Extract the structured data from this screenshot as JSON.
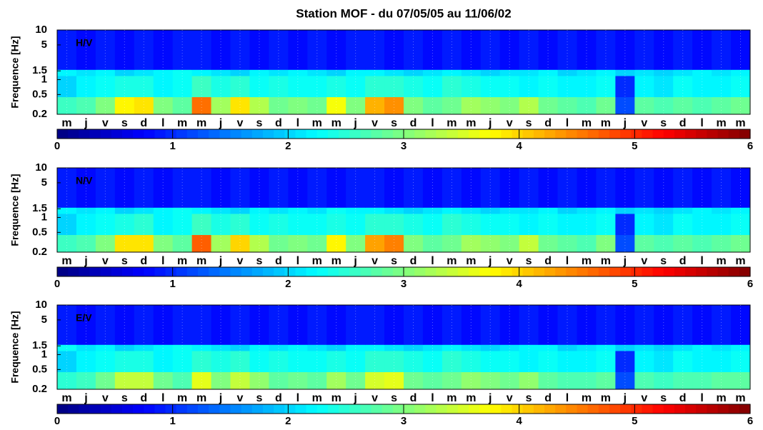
{
  "chart_data": [
    {
      "type": "heatmap",
      "title": "Station MOF - du 07/05/05 au 11/06/02",
      "label": "H/V",
      "ylabel": "Frequence [Hz]",
      "categories": [
        "m",
        "j",
        "v",
        "s",
        "d",
        "l",
        "m",
        "m",
        "j",
        "v",
        "s",
        "d",
        "l",
        "m",
        "m",
        "j",
        "v",
        "s",
        "d",
        "l",
        "m",
        "m",
        "j",
        "v",
        "s",
        "d",
        "l",
        "m",
        "m",
        "j",
        "v",
        "s",
        "d",
        "l",
        "m",
        "m"
      ],
      "ybins": [
        0.2,
        0.45,
        1.2,
        1.6,
        10
      ],
      "values": [
        [
          2.6,
          2.7,
          3.0,
          3.8,
          3.9,
          3.0,
          2.8,
          4.6,
          3.2,
          3.9,
          3.3,
          2.9,
          3.0,
          2.9,
          3.7,
          3.0,
          4.2,
          4.4,
          3.0,
          2.8,
          2.9,
          3.2,
          3.1,
          3.0,
          3.3,
          2.9,
          2.8,
          2.7,
          2.9,
          1.2,
          2.8,
          2.7,
          2.8,
          2.7,
          2.8,
          2.9
        ],
        [
          2.0,
          2.2,
          2.3,
          2.4,
          2.4,
          2.2,
          2.3,
          2.6,
          2.4,
          2.5,
          2.3,
          2.4,
          2.3,
          2.3,
          2.4,
          2.3,
          2.5,
          2.5,
          2.4,
          2.3,
          2.5,
          2.4,
          2.3,
          2.3,
          2.2,
          2.3,
          2.2,
          2.2,
          2.3,
          1.0,
          2.2,
          2.1,
          2.3,
          2.2,
          2.2,
          2.3
        ],
        [
          2.2,
          2.1,
          2.2,
          2.0,
          2.1,
          2.2,
          2.3,
          2.2,
          2.1,
          2.0,
          2.2,
          2.1,
          2.2,
          2.1,
          2.0,
          2.2,
          2.2,
          2.1,
          2.0,
          2.1,
          2.2,
          2.1,
          2.0,
          2.1,
          2.1,
          2.2,
          2.0,
          2.1,
          2.2,
          2.0,
          2.1,
          2.0,
          2.1,
          2.2,
          2.1,
          2.2
        ],
        [
          0.9,
          0.8,
          0.9,
          0.8,
          0.9,
          0.8,
          0.9,
          0.9,
          0.8,
          0.9,
          0.8,
          0.9,
          0.8,
          0.9,
          0.8,
          0.9,
          0.9,
          0.8,
          0.9,
          0.8,
          0.9,
          0.8,
          0.9,
          0.8,
          0.9,
          0.8,
          0.9,
          0.8,
          0.9,
          0.8,
          0.9,
          0.8,
          0.9,
          0.8,
          0.9,
          0.8
        ]
      ],
      "ylim": [
        0.2,
        10
      ],
      "yticks": [
        0.2,
        0.5,
        1,
        1.5,
        5,
        10
      ],
      "log_y": true,
      "clim": [
        0,
        6
      ],
      "cticks": [
        0,
        1,
        2,
        3,
        4,
        5,
        6
      ],
      "colormap": "jet"
    },
    {
      "type": "heatmap",
      "label": "N/V",
      "ylabel": "Frequence [Hz]",
      "categories": [
        "m",
        "j",
        "v",
        "s",
        "d",
        "l",
        "m",
        "m",
        "j",
        "v",
        "s",
        "d",
        "l",
        "m",
        "m",
        "j",
        "v",
        "s",
        "d",
        "l",
        "m",
        "m",
        "j",
        "v",
        "s",
        "d",
        "l",
        "m",
        "m",
        "j",
        "v",
        "s",
        "d",
        "l",
        "m",
        "m"
      ],
      "ybins": [
        0.2,
        0.45,
        1.2,
        1.6,
        10
      ],
      "values": [
        [
          2.6,
          2.7,
          3.0,
          3.9,
          3.9,
          3.0,
          2.8,
          4.7,
          3.2,
          4.0,
          3.3,
          2.9,
          3.0,
          2.9,
          3.8,
          3.0,
          4.3,
          4.5,
          3.0,
          2.8,
          2.9,
          3.2,
          3.1,
          3.0,
          3.4,
          2.9,
          2.8,
          2.7,
          3.0,
          1.2,
          2.8,
          2.7,
          2.8,
          2.7,
          2.8,
          2.9
        ],
        [
          2.0,
          2.2,
          2.3,
          2.4,
          2.5,
          2.2,
          2.3,
          2.6,
          2.4,
          2.5,
          2.3,
          2.4,
          2.3,
          2.3,
          2.4,
          2.3,
          2.5,
          2.5,
          2.4,
          2.3,
          2.5,
          2.4,
          2.3,
          2.3,
          2.2,
          2.3,
          2.2,
          2.2,
          2.3,
          1.0,
          2.2,
          2.1,
          2.3,
          2.2,
          2.2,
          2.3
        ],
        [
          2.2,
          2.1,
          2.2,
          2.0,
          2.1,
          2.2,
          2.3,
          2.2,
          2.1,
          2.0,
          2.2,
          2.1,
          2.2,
          2.1,
          2.3,
          2.2,
          2.2,
          2.1,
          2.0,
          2.1,
          2.2,
          2.1,
          2.0,
          2.1,
          2.1,
          2.2,
          2.0,
          2.1,
          2.2,
          2.0,
          2.1,
          2.0,
          2.1,
          2.2,
          2.1,
          2.2
        ],
        [
          0.9,
          0.8,
          0.9,
          0.8,
          0.9,
          0.8,
          0.9,
          0.9,
          0.8,
          0.9,
          0.8,
          0.9,
          0.8,
          0.9,
          0.8,
          0.9,
          0.9,
          0.8,
          0.9,
          0.8,
          0.9,
          0.8,
          0.9,
          0.8,
          0.9,
          0.8,
          0.9,
          0.8,
          0.9,
          0.8,
          0.9,
          0.8,
          0.9,
          0.8,
          0.9,
          0.8
        ]
      ],
      "ylim": [
        0.2,
        10
      ],
      "yticks": [
        0.2,
        0.5,
        1,
        1.5,
        5,
        10
      ],
      "log_y": true,
      "clim": [
        0,
        6
      ],
      "cticks": [
        0,
        1,
        2,
        3,
        4,
        5,
        6
      ],
      "colormap": "jet"
    },
    {
      "type": "heatmap",
      "label": "E/V",
      "ylabel": "Frequence [Hz]",
      "categories": [
        "m",
        "j",
        "v",
        "s",
        "d",
        "l",
        "m",
        "m",
        "j",
        "v",
        "s",
        "d",
        "l",
        "m",
        "m",
        "j",
        "v",
        "s",
        "d",
        "l",
        "m",
        "m",
        "j",
        "v",
        "s",
        "d",
        "l",
        "m",
        "m",
        "j",
        "v",
        "s",
        "d",
        "l",
        "m",
        "m"
      ],
      "ybins": [
        0.2,
        0.45,
        1.2,
        1.6,
        10
      ],
      "values": [
        [
          2.5,
          2.6,
          2.9,
          3.4,
          3.4,
          2.9,
          2.7,
          3.6,
          3.0,
          3.4,
          3.1,
          2.8,
          2.9,
          2.8,
          3.2,
          2.9,
          3.5,
          3.6,
          2.9,
          2.8,
          2.9,
          3.1,
          3.0,
          2.9,
          3.1,
          2.8,
          2.7,
          2.7,
          2.8,
          1.2,
          2.7,
          2.6,
          2.7,
          2.7,
          2.8,
          2.8
        ],
        [
          2.0,
          2.2,
          2.3,
          2.4,
          2.4,
          2.2,
          2.3,
          2.5,
          2.4,
          2.5,
          2.3,
          2.4,
          2.3,
          2.3,
          2.4,
          2.3,
          2.5,
          2.5,
          2.4,
          2.3,
          2.5,
          2.4,
          2.3,
          2.3,
          2.2,
          2.3,
          2.2,
          2.2,
          2.3,
          1.0,
          2.2,
          2.1,
          2.3,
          2.2,
          2.2,
          2.3
        ],
        [
          2.3,
          2.1,
          2.2,
          2.0,
          2.1,
          2.2,
          2.3,
          2.2,
          2.1,
          2.0,
          2.2,
          2.1,
          2.2,
          2.1,
          2.0,
          2.2,
          2.2,
          2.1,
          2.0,
          2.1,
          2.2,
          2.1,
          2.0,
          2.1,
          2.2,
          2.2,
          2.0,
          2.1,
          2.2,
          2.0,
          2.1,
          2.0,
          2.1,
          2.2,
          2.1,
          2.2
        ],
        [
          0.9,
          0.8,
          0.9,
          0.8,
          0.9,
          0.8,
          0.9,
          0.9,
          0.8,
          0.9,
          0.8,
          0.9,
          0.8,
          0.9,
          0.8,
          0.9,
          0.9,
          0.8,
          0.9,
          0.8,
          0.9,
          0.8,
          0.9,
          0.8,
          0.9,
          0.8,
          0.9,
          0.8,
          0.9,
          0.8,
          0.9,
          0.8,
          0.9,
          0.8,
          0.9,
          0.8
        ]
      ],
      "ylim": [
        0.2,
        10
      ],
      "yticks": [
        0.2,
        0.5,
        1,
        1.5,
        5,
        10
      ],
      "log_y": true,
      "clim": [
        0,
        6
      ],
      "cticks": [
        0,
        1,
        2,
        3,
        4,
        5,
        6
      ],
      "colormap": "jet"
    }
  ]
}
